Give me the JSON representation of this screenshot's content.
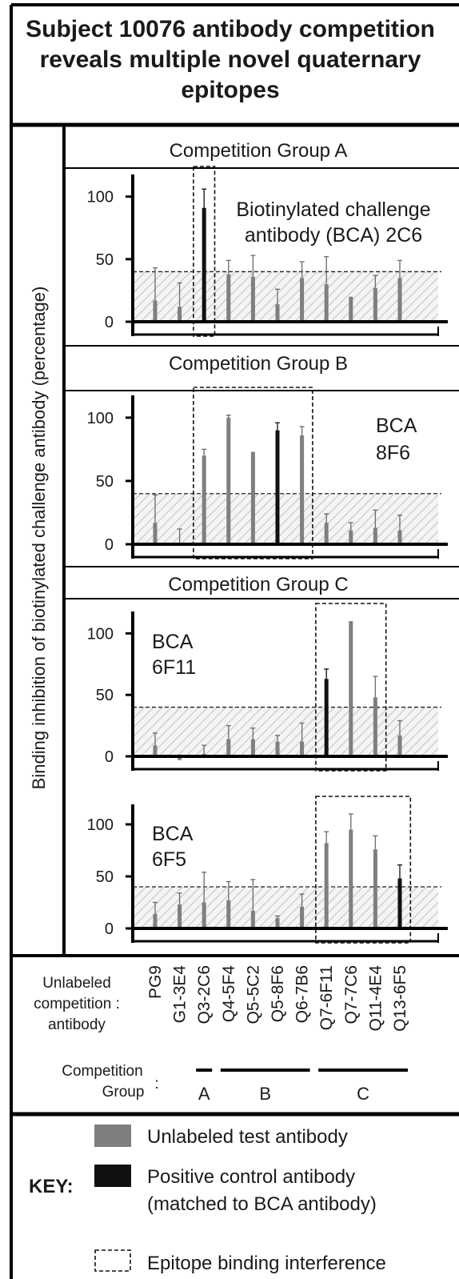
{
  "title": "Subject 10076 antibody competition reveals multiple novel quaternary epitopes",
  "ylabel": "Binding inhibition of biotinylated challenge antibody (percentage)",
  "chart_data": [
    {
      "type": "bar",
      "panel_title": "Competition Group A",
      "annotation": [
        "Biotinylated challenge",
        "antibody (BCA) 2C6"
      ],
      "categories": [
        "PG9",
        "G1-3E4",
        "Q3-2C6",
        "Q4-5F4",
        "Q5-5C2",
        "Q5-8F6",
        "Q6-7B6",
        "Q7-6F11",
        "Q7-7C6",
        "Q11-4E4",
        "Q13-6F5"
      ],
      "values": [
        17,
        12,
        91,
        38,
        36,
        14,
        35,
        30,
        20,
        27,
        35
      ],
      "error": [
        26,
        19,
        15,
        11,
        17,
        12,
        13,
        22,
        0,
        10,
        14
      ],
      "positive_control": "Q3-2C6",
      "threshold": 40,
      "ylim": [
        0,
        110
      ],
      "yticks": [
        0,
        50,
        100
      ],
      "epitope_box": [
        "Q3-2C6",
        "Q3-2C6"
      ]
    },
    {
      "type": "bar",
      "panel_title": "Competition Group B",
      "annotation": [
        "BCA",
        "8F6"
      ],
      "categories": [
        "PG9",
        "G1-3E4",
        "Q3-2C6",
        "Q4-5F4",
        "Q5-5C2",
        "Q5-8F6",
        "Q6-7B6",
        "Q7-6F11",
        "Q7-7C6",
        "Q11-4E4",
        "Q13-6F5"
      ],
      "values": [
        17,
        0,
        70,
        100,
        73,
        90,
        86,
        17,
        11,
        13,
        11
      ],
      "error": [
        22,
        12,
        5,
        2,
        0,
        6,
        7,
        7,
        6,
        14,
        12
      ],
      "positive_control": "Q5-8F6",
      "threshold": 40,
      "ylim": [
        0,
        110
      ],
      "yticks": [
        0,
        50,
        100
      ],
      "epitope_box": [
        "Q3-2C6",
        "Q6-7B6"
      ]
    },
    {
      "type": "bar",
      "panel_title": "Competition Group C",
      "annotation": [
        "BCA",
        "6F11"
      ],
      "categories": [
        "PG9",
        "G1-3E4",
        "Q3-2C6",
        "Q4-5F4",
        "Q5-5C2",
        "Q5-8F6",
        "Q6-7B6",
        "Q7-6F11",
        "Q7-7C6",
        "Q11-4E4",
        "Q13-6F5"
      ],
      "values": [
        9,
        -3,
        2,
        14,
        14,
        12,
        12,
        63,
        110,
        48,
        17
      ],
      "error": [
        10,
        4,
        7,
        11,
        9,
        5,
        15,
        8,
        0,
        17,
        12
      ],
      "positive_control": "Q7-6F11",
      "threshold": 40,
      "ylim": [
        0,
        110
      ],
      "yticks": [
        0,
        50,
        100
      ],
      "epitope_box": [
        "Q7-6F11",
        "Q11-4E4"
      ]
    },
    {
      "type": "bar",
      "panel_title": "",
      "annotation": [
        "BCA",
        "6F5"
      ],
      "categories": [
        "PG9",
        "G1-3E4",
        "Q3-2C6",
        "Q4-5F4",
        "Q5-5C2",
        "Q5-8F6",
        "Q6-7B6",
        "Q7-6F11",
        "Q7-7C6",
        "Q11-4E4",
        "Q13-6F5"
      ],
      "values": [
        14,
        23,
        25,
        27,
        17,
        10,
        21,
        82,
        95,
        76,
        48
      ],
      "error": [
        11,
        11,
        29,
        18,
        30,
        2,
        12,
        11,
        15,
        13,
        13
      ],
      "positive_control": "Q13-6F5",
      "threshold": 40,
      "ylim": [
        0,
        110
      ],
      "yticks": [
        0,
        50,
        100
      ],
      "epitope_box": [
        "Q7-6F11",
        "Q13-6F5"
      ]
    }
  ],
  "xaxis": {
    "row_label": [
      "Unlabeled",
      "competition :",
      "antibody"
    ],
    "antibodies": [
      "PG9",
      "G1-3E4",
      "Q3-2C6",
      "Q4-5F4",
      "Q5-5C2",
      "Q5-8F6",
      "Q6-7B6",
      "Q7-6F11",
      "Q7-7C6",
      "Q11-4E4",
      "Q13-6F5"
    ]
  },
  "groups": {
    "row_label": [
      "Competition",
      "Group"
    ],
    "colon": ":",
    "items": [
      {
        "name": "A",
        "from": "Q3-2C6",
        "to": "Q3-2C6"
      },
      {
        "name": "B",
        "from": "Q4-5F4",
        "to": "Q6-7B6"
      },
      {
        "name": "C",
        "from": "Q7-6F11",
        "to": "Q13-6F5"
      }
    ]
  },
  "key": {
    "label": "KEY:",
    "items": [
      {
        "lines": [
          "Unlabeled test antibody"
        ]
      },
      {
        "lines": [
          "Positive control antibody",
          "(matched to BCA antibody)"
        ]
      },
      {
        "lines": [
          "Epitope binding interference"
        ]
      }
    ]
  },
  "colors": {
    "test_bar": "#7f7f7f",
    "control_bar": "#111111",
    "hatch": "#c8c8c8",
    "frame": "#000000"
  }
}
